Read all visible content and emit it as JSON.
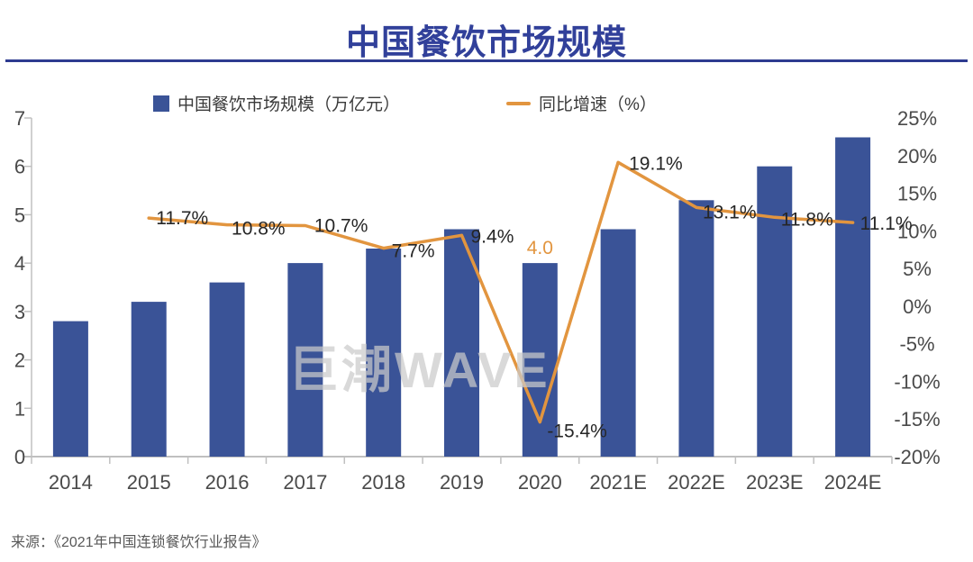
{
  "header": {
    "title": "中国餐饮市场规模"
  },
  "legend": [
    {
      "label": "中国餐饮市场规模（万亿元）",
      "marker": "square",
      "color": "#3A5397"
    },
    {
      "label": "同比增速（%）",
      "marker": "line",
      "color": "#E2953F"
    }
  ],
  "chart_data": {
    "type": "bar",
    "subtype": "bar+line combo, dual axis",
    "title": "中国餐饮市场规模",
    "categories": [
      "2014",
      "2015",
      "2016",
      "2017",
      "2018",
      "2019",
      "2020",
      "2021E",
      "2022E",
      "2023E",
      "2024E"
    ],
    "series": [
      {
        "name": "中国餐饮市场规模（万亿元）",
        "type": "bar",
        "axis": "left",
        "color": "#3A5397",
        "values": [
          2.8,
          3.2,
          3.6,
          4.0,
          4.3,
          4.7,
          4.0,
          4.7,
          5.3,
          6.0,
          6.6
        ]
      },
      {
        "name": "同比增速（%）",
        "type": "line",
        "axis": "right",
        "color": "#E2953F",
        "values": [
          null,
          11.7,
          10.8,
          10.7,
          7.7,
          9.4,
          -15.4,
          19.1,
          13.1,
          11.8,
          11.1
        ],
        "labels": [
          null,
          "11.7%",
          "10.8%",
          "10.7%",
          "7.7%",
          "9.4%",
          "-15.4%",
          "19.1%",
          "13.1%",
          "11.8%",
          "11.1%"
        ]
      }
    ],
    "bar_value_labels": [
      {
        "index": 6,
        "text": "4.0"
      }
    ],
    "axes": {
      "left": {
        "min": 0,
        "max": 7,
        "ticks": [
          0,
          1,
          2,
          3,
          4,
          5,
          6,
          7
        ]
      },
      "right": {
        "min": -20,
        "max": 25,
        "ticks": [
          "25%",
          "20%",
          "15%",
          "10%",
          "5%",
          "0%",
          "-5%",
          "-10%",
          "-15%",
          "-20%"
        ]
      }
    },
    "grid": false,
    "legend_position": "top"
  },
  "watermark": "巨潮WAVE",
  "source": "来源：《2021年中国连锁餐饮行业报告》",
  "colors": {
    "bar": "#3A5397",
    "line": "#E2953F",
    "title": "#31409A",
    "divider": "#2E3B90",
    "axis_line": "#C0C0C0",
    "axis_text": "#4A4A4A",
    "data_label_text": "#262626",
    "watermark_text": "#CBCBCB",
    "source_text": "#595959"
  }
}
